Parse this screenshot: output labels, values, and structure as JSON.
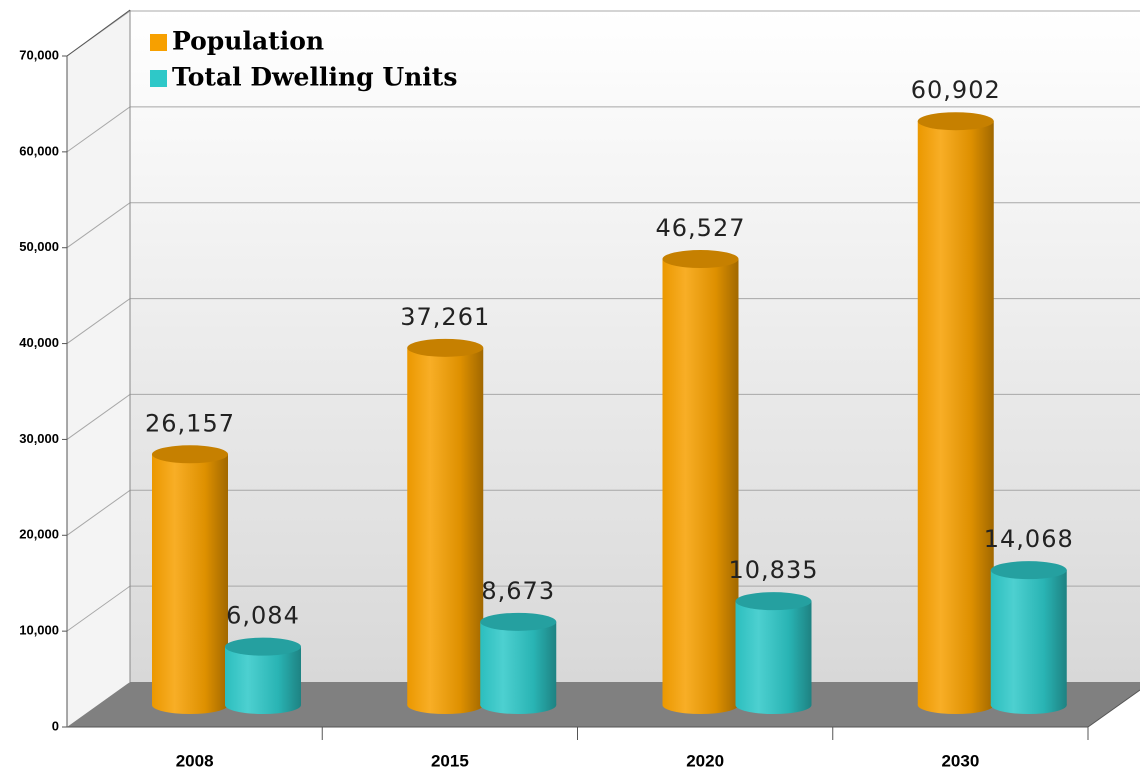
{
  "chart_data": {
    "type": "bar3d-cylinder",
    "categories": [
      "2008",
      "2015",
      "2020",
      "2030"
    ],
    "series": [
      {
        "name": "Population",
        "color": "#f7a000",
        "values": [
          26157,
          37261,
          46527,
          60902
        ]
      },
      {
        "name": "Total Dwelling Units",
        "color": "#2ec8c8",
        "values": [
          6084,
          8673,
          10835,
          14068
        ]
      }
    ],
    "value_labels": [
      [
        "26,157",
        "37,261",
        "46,527",
        "60,902"
      ],
      [
        "6,084",
        "8,673",
        "10,835",
        "14,068"
      ]
    ],
    "ylim": [
      0,
      70000
    ],
    "yticks": [
      0,
      {
        "value": 10000,
        "label": "10,000"
      },
      {
        "value": 20000,
        "label": "20,000"
      },
      {
        "value": 30000,
        "label": "30,000"
      },
      {
        "value": 40000,
        "label": "40,000"
      },
      {
        "value": 50000,
        "label": "50,000"
      },
      {
        "value": 60000,
        "label": "60,000"
      },
      {
        "value": 70000,
        "label": "70,000"
      }
    ],
    "grid": true,
    "legend": "upper left"
  }
}
